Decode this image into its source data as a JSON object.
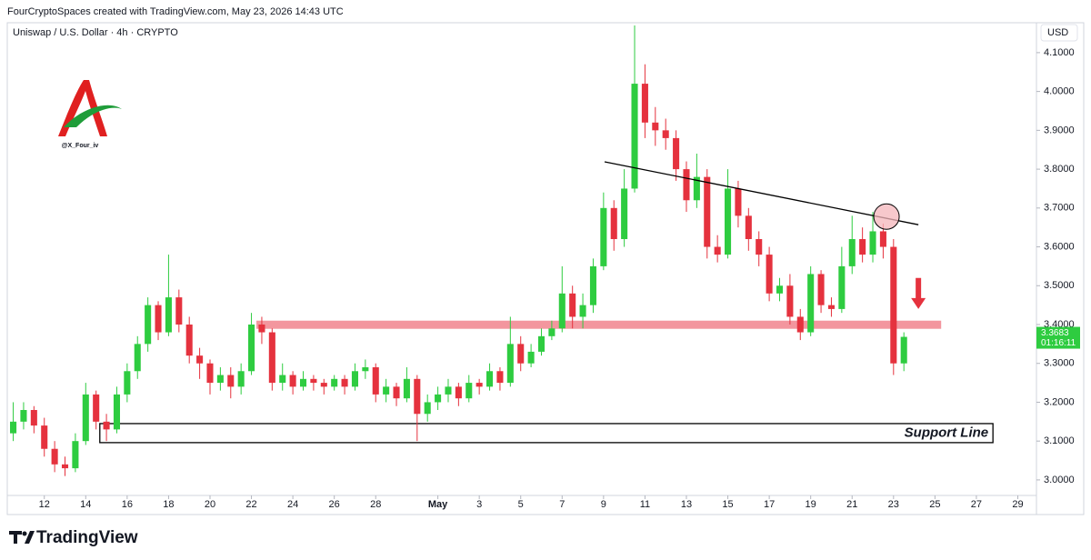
{
  "chart_data": {
    "type": "candlestick",
    "header": "FourCryptoSpaces created with TradingView.com, May 23, 2026 14:43 UTC",
    "title": "Uniswap / U.S. Dollar · 4h · CRYPTO",
    "y_axis_label": "USD",
    "watermark": "@X_Four_iv",
    "brand": "TradingView",
    "up_color": "#2ecc40",
    "down_color": "#e5323e",
    "grid": false,
    "xlim": [
      10.3,
      59.9
    ],
    "xticks": [
      12,
      14,
      16,
      18,
      20,
      22,
      24,
      26,
      28,
      {
        "value": 31,
        "label": "May"
      },
      {
        "value": 33,
        "label": "3"
      },
      {
        "value": 35,
        "label": "5"
      },
      {
        "value": 37,
        "label": "7"
      },
      {
        "value": 39,
        "label": "9"
      },
      {
        "value": 41,
        "label": "11"
      },
      {
        "value": 43,
        "label": "13"
      },
      {
        "value": 45,
        "label": "15"
      },
      {
        "value": 47,
        "label": "17"
      },
      {
        "value": 49,
        "label": "19"
      },
      {
        "value": 51,
        "label": "21"
      },
      {
        "value": 53,
        "label": "23"
      },
      {
        "value": 55,
        "label": "25"
      },
      {
        "value": 57,
        "label": "27"
      },
      {
        "value": 59,
        "label": "29"
      }
    ],
    "ylim": [
      2.96,
      4.177
    ],
    "yticks": [
      {
        "value": 3.0,
        "label": "3.0000"
      },
      {
        "value": 3.1,
        "label": "3.1000"
      },
      {
        "value": 3.2,
        "label": "3.2000"
      },
      {
        "value": 3.3,
        "label": "3.3000"
      },
      {
        "value": 3.4,
        "label": "3.4000"
      },
      {
        "value": 3.5,
        "label": "3.5000"
      },
      {
        "value": 3.6,
        "label": "3.6000"
      },
      {
        "value": 3.7,
        "label": "3.7000"
      },
      {
        "value": 3.8,
        "label": "3.8000"
      },
      {
        "value": 3.9,
        "label": "3.9000"
      },
      {
        "value": 4.0,
        "label": "4.0000"
      },
      {
        "value": 4.1,
        "label": "4.1000"
      }
    ],
    "x": [
      10.5,
      11,
      11.5,
      12,
      12.5,
      13,
      13.5,
      14,
      14.5,
      15,
      15.5,
      16,
      16.5,
      17,
      17.5,
      18,
      18.5,
      19,
      19.5,
      20,
      20.5,
      21,
      21.5,
      22,
      22.5,
      23,
      23.5,
      24,
      24.5,
      25,
      25.5,
      26,
      26.5,
      27,
      27.5,
      28,
      28.5,
      29,
      29.5,
      30,
      30.5,
      31,
      31.5,
      32,
      32.5,
      33,
      33.5,
      34,
      34.5,
      35,
      35.5,
      36,
      36.5,
      37,
      37.5,
      38,
      38.5,
      39,
      39.5,
      40,
      40.5,
      41,
      41.5,
      42,
      42.5,
      43,
      43.5,
      44,
      44.5,
      45,
      45.5,
      46,
      46.5,
      47,
      47.5,
      48,
      48.5,
      49,
      49.5,
      50,
      50.5,
      51,
      51.5,
      52,
      52.5,
      53,
      53.5
    ],
    "open": [
      3.12,
      3.15,
      3.18,
      3.14,
      3.08,
      3.04,
      3.03,
      3.1,
      3.22,
      3.15,
      3.13,
      3.22,
      3.28,
      3.35,
      3.45,
      3.38,
      3.47,
      3.4,
      3.32,
      3.3,
      3.25,
      3.27,
      3.24,
      3.28,
      3.4,
      3.38,
      3.25,
      3.27,
      3.24,
      3.26,
      3.25,
      3.24,
      3.26,
      3.24,
      3.28,
      3.29,
      3.22,
      3.24,
      3.21,
      3.26,
      3.17,
      3.2,
      3.22,
      3.24,
      3.21,
      3.25,
      3.24,
      3.28,
      3.25,
      3.35,
      3.3,
      3.33,
      3.37,
      3.39,
      3.48,
      3.42,
      3.45,
      3.55,
      3.7,
      3.62,
      3.75,
      4.02,
      3.92,
      3.9,
      3.88,
      3.8,
      3.72,
      3.78,
      3.6,
      3.58,
      3.75,
      3.68,
      3.62,
      3.58,
      3.48,
      3.5,
      3.42,
      3.38,
      3.53,
      3.45,
      3.44,
      3.55,
      3.62,
      3.58,
      3.64,
      3.6,
      3.3
    ],
    "high": [
      3.2,
      3.2,
      3.19,
      3.16,
      3.1,
      3.06,
      3.12,
      3.25,
      3.23,
      3.17,
      3.24,
      3.3,
      3.37,
      3.47,
      3.46,
      3.58,
      3.49,
      3.42,
      3.34,
      3.31,
      3.29,
      3.29,
      3.3,
      3.43,
      3.42,
      3.39,
      3.3,
      3.28,
      3.28,
      3.27,
      3.26,
      3.27,
      3.27,
      3.3,
      3.31,
      3.3,
      3.26,
      3.25,
      3.29,
      3.27,
      3.22,
      3.24,
      3.26,
      3.25,
      3.27,
      3.26,
      3.3,
      3.29,
      3.42,
      3.37,
      3.35,
      3.39,
      3.41,
      3.55,
      3.5,
      3.48,
      3.57,
      3.74,
      3.72,
      3.8,
      4.17,
      4.07,
      3.96,
      3.93,
      3.9,
      3.82,
      3.84,
      3.8,
      3.63,
      3.8,
      3.77,
      3.7,
      3.64,
      3.6,
      3.52,
      3.53,
      3.44,
      3.55,
      3.54,
      3.47,
      3.6,
      3.68,
      3.65,
      3.69,
      3.66,
      3.62,
      3.38
    ],
    "low": [
      3.1,
      3.13,
      3.12,
      3.06,
      3.02,
      3.01,
      3.02,
      3.09,
      3.13,
      3.1,
      3.12,
      3.2,
      3.26,
      3.33,
      3.36,
      3.37,
      3.38,
      3.3,
      3.26,
      3.22,
      3.23,
      3.21,
      3.22,
      3.27,
      3.35,
      3.23,
      3.23,
      3.22,
      3.23,
      3.23,
      3.22,
      3.23,
      3.22,
      3.23,
      3.26,
      3.2,
      3.2,
      3.19,
      3.2,
      3.1,
      3.15,
      3.18,
      3.2,
      3.19,
      3.2,
      3.22,
      3.23,
      3.23,
      3.24,
      3.28,
      3.29,
      3.32,
      3.36,
      3.38,
      3.39,
      3.39,
      3.43,
      3.54,
      3.59,
      3.6,
      3.74,
      3.88,
      3.86,
      3.85,
      3.77,
      3.69,
      3.7,
      3.57,
      3.56,
      3.57,
      3.65,
      3.59,
      3.55,
      3.46,
      3.46,
      3.4,
      3.36,
      3.37,
      3.43,
      3.42,
      3.43,
      3.53,
      3.56,
      3.56,
      3.57,
      3.27,
      3.28
    ],
    "close": [
      3.15,
      3.18,
      3.14,
      3.08,
      3.04,
      3.03,
      3.1,
      3.22,
      3.15,
      3.13,
      3.22,
      3.28,
      3.35,
      3.45,
      3.38,
      3.47,
      3.4,
      3.32,
      3.3,
      3.25,
      3.27,
      3.24,
      3.28,
      3.4,
      3.38,
      3.25,
      3.27,
      3.24,
      3.26,
      3.25,
      3.24,
      3.26,
      3.24,
      3.28,
      3.29,
      3.22,
      3.24,
      3.21,
      3.26,
      3.17,
      3.2,
      3.22,
      3.24,
      3.21,
      3.25,
      3.24,
      3.28,
      3.25,
      3.35,
      3.3,
      3.33,
      3.37,
      3.39,
      3.48,
      3.42,
      3.45,
      3.55,
      3.7,
      3.62,
      3.75,
      4.02,
      3.92,
      3.9,
      3.88,
      3.8,
      3.72,
      3.78,
      3.6,
      3.58,
      3.75,
      3.68,
      3.62,
      3.58,
      3.48,
      3.5,
      3.42,
      3.38,
      3.53,
      3.45,
      3.44,
      3.55,
      3.62,
      3.58,
      3.64,
      3.6,
      3.3,
      3.3683
    ],
    "last_price": 3.3683,
    "countdown": "01:16:11",
    "annotations": {
      "trendline": {
        "x": [
          39.05,
          54.2
        ],
        "y": [
          3.819,
          3.657
        ],
        "color": "#000000"
      },
      "resistance_zone": {
        "x": [
          22.24,
          55.3
        ],
        "y": [
          3.389,
          3.41
        ],
        "color": "#f28b93"
      },
      "support_zone": {
        "label": "Support Line",
        "x": [
          14.68,
          57.8
        ],
        "y": [
          3.096,
          3.145
        ],
        "color": "#000000"
      },
      "circle": {
        "x": 52.66,
        "y": 3.678,
        "color": "#f4b6bb"
      },
      "arrow": {
        "x": 54.2,
        "y": [
          3.52,
          3.44
        ],
        "color": "#e5323e"
      }
    }
  }
}
